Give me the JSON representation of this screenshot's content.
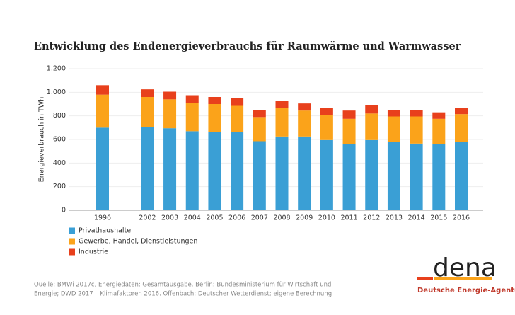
{
  "chart_data": {
    "type": "stacked_bar",
    "title": "Entwicklung des Endenergieverbrauchs für Raumwärme und Warmwasser",
    "y_label": "Energieverbrauch  in TWh",
    "categories": [
      "1996",
      null,
      "2002",
      "2003",
      "2004",
      "2005",
      "2006",
      "2007",
      "2008",
      "2009",
      "2010",
      "2011",
      "2012",
      "2013",
      "2014",
      "2015",
      "2016"
    ],
    "series": [
      {
        "name": "Privathaushalte",
        "color": "#3a9fd5",
        "values": [
          700,
          null,
          705,
          695,
          670,
          660,
          665,
          585,
          625,
          625,
          595,
          560,
          595,
          580,
          565,
          560,
          580
        ]
      },
      {
        "name": "Gewerbe, Handel, Dienstleistungen",
        "color": "#fba31a",
        "values": [
          280,
          null,
          255,
          245,
          240,
          240,
          220,
          205,
          240,
          220,
          210,
          215,
          225,
          215,
          230,
          215,
          235
        ]
      },
      {
        "name": "Industrie",
        "color": "#e8401c",
        "values": [
          80,
          null,
          65,
          65,
          65,
          60,
          65,
          60,
          60,
          60,
          60,
          70,
          70,
          55,
          55,
          55,
          50
        ]
      }
    ],
    "ylim": [
      0,
      1200
    ],
    "yticks": [
      0,
      200,
      400,
      600,
      800,
      {
        "value": 1000,
        "label": "1.000"
      },
      {
        "value": 1200,
        "label": "1.200"
      }
    ],
    "grid": true
  },
  "footer": {
    "source": [
      "Quelle: BMWi 2017c, Energiedaten: Gesamtausgabe. Berlin: Bundesministerium für Wirtschaft und",
      "Energie; DWD 2017 – Klimafaktoren 2016. Offenbach: Deutscher Wetterdienst; eigene Berechnung"
    ],
    "logo": "dena",
    "organization": "Deutsche Energie-Agentur"
  }
}
